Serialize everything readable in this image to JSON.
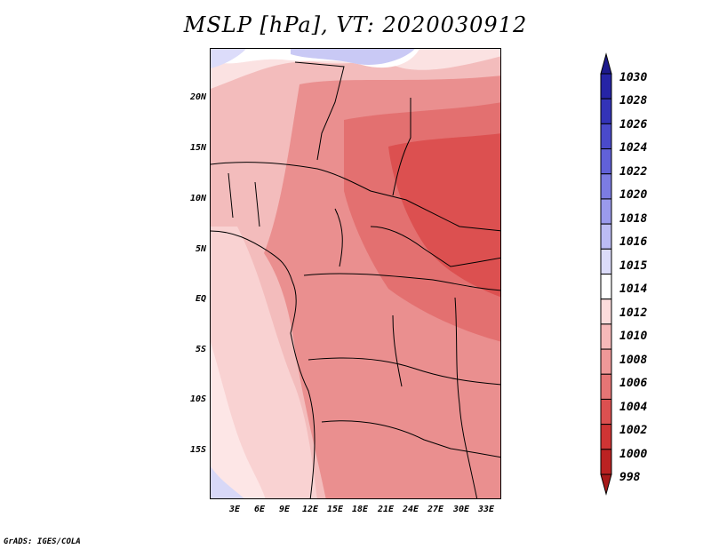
{
  "title": "MSLP [hPa], VT: 2020030912",
  "axes": {
    "lat_labels": [
      "20N",
      "15N",
      "10N",
      "5N",
      "EQ",
      "5S",
      "10S",
      "15S"
    ],
    "lon_labels": [
      "3E",
      "6E",
      "9E",
      "12E",
      "15E",
      "18E",
      "21E",
      "24E",
      "27E",
      "30E",
      "33E"
    ]
  },
  "colorbar": {
    "levels": [
      "1030",
      "1028",
      "1026",
      "1024",
      "1022",
      "1020",
      "1018",
      "1016",
      "1015",
      "1014",
      "1012",
      "1010",
      "1008",
      "1006",
      "1004",
      "1002",
      "1000",
      "998"
    ],
    "colors": [
      "#1d1a8c",
      "#2624a6",
      "#3333b8",
      "#4a4acb",
      "#6161d8",
      "#7c7ce3",
      "#9a9aec",
      "#bcbcf4",
      "#dcdcfa",
      "#ffffff",
      "#fcdcdc",
      "#f7b9b9",
      "#ef9898",
      "#e67575",
      "#dc5050",
      "#cf3434",
      "#bb2222",
      "#a81a1a"
    ]
  },
  "credit": "GrADS: IGES/COLA"
}
